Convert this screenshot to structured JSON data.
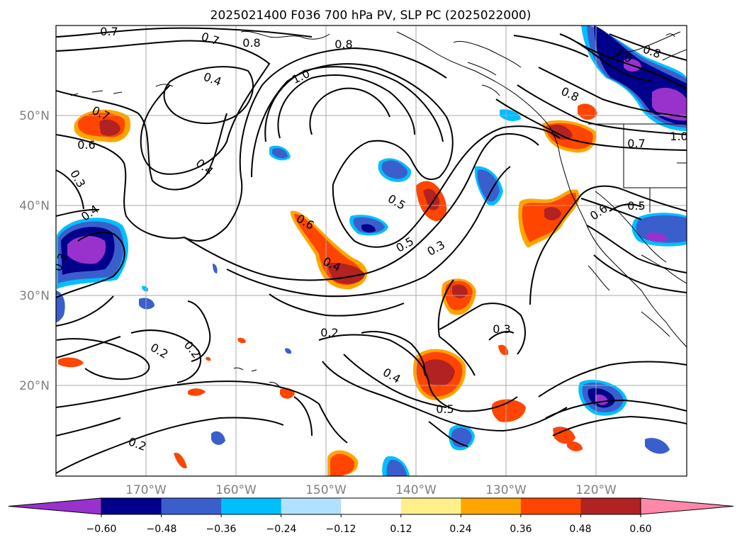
{
  "title": "2025021400 F036 700 hPa PV, SLP PC (2025022000)",
  "map": {
    "lon_labels": [
      "170°W",
      "160°W",
      "150°W",
      "140°W",
      "130°W",
      "120°W"
    ],
    "lat_labels": [
      "50°N",
      "40°N",
      "30°N",
      "20°N"
    ],
    "contour_labels": [
      "0.7",
      "0.7",
      "0.8",
      "0.8",
      "1.0",
      "0.4",
      "0.7",
      "0.6",
      "0.4",
      "0.3",
      "0.4",
      "0.3",
      "0.6",
      "0.4",
      "0.5",
      "0.5",
      "0.3",
      "0.2",
      "0.2",
      "0.2",
      "0.4",
      "0.3",
      "0.5",
      "0.2",
      "1.0",
      "0.8",
      "0.8",
      "0.7",
      "1.0",
      "0.6",
      "0.5"
    ]
  },
  "colorbar": {
    "ticks": [
      "−0.60",
      "−0.48",
      "−0.36",
      "−0.24",
      "−0.12",
      "0.12",
      "0.24",
      "0.36",
      "0.48",
      "0.60"
    ],
    "colors": [
      "#9932cc",
      "#00008b",
      "#3a5fcd",
      "#00bfff",
      "#b0e2ff",
      "#ffffff",
      "#fff08c",
      "#ffa500",
      "#ff4500",
      "#b22222",
      "#ff88aa"
    ]
  }
}
